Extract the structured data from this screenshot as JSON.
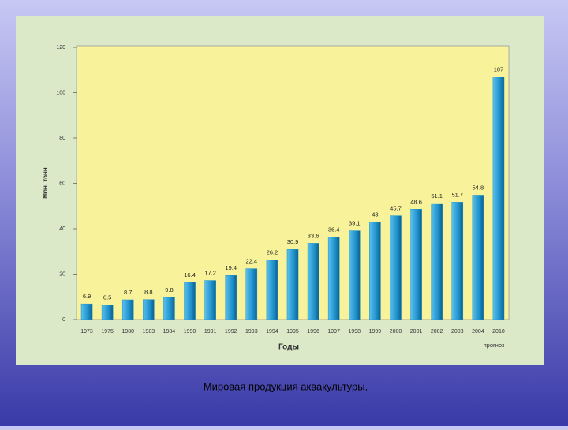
{
  "chart_data": {
    "type": "bar",
    "y_label": "Млн. тонн",
    "x_label": "Годы",
    "annotation": "прогноз",
    "caption": "Мировая продукция аквакультуры.",
    "categories": [
      "1973",
      "1975",
      "1980",
      "1983",
      "1984",
      "1990",
      "1991",
      "1992",
      "1993",
      "1994",
      "1995",
      "1996",
      "1997",
      "1998",
      "1999",
      "2000",
      "2001",
      "2002",
      "2003",
      "2004",
      "2010"
    ],
    "values": [
      6.9,
      6.5,
      8.7,
      8.8,
      9.8,
      16.4,
      17.2,
      19.4,
      22.4,
      26.2,
      30.9,
      33.6,
      36.4,
      39.1,
      43,
      45.7,
      48.6,
      51.1,
      51.7,
      54.8,
      107
    ],
    "color": "#1f93cc",
    "ylim": [
      0,
      120
    ],
    "yticks": [
      0,
      20,
      40,
      60,
      80,
      100,
      120
    ]
  }
}
